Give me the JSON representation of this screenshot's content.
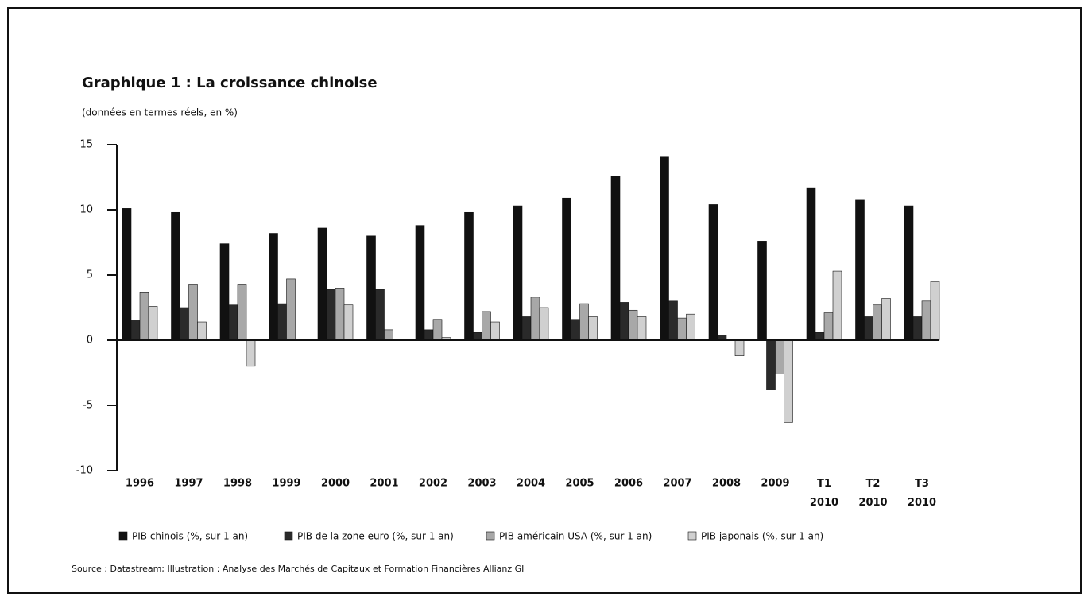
{
  "chart_data": {
    "type": "bar",
    "title": "Graphique 1 : La croissance chinoise",
    "subtitle": "(données en termes réels, en %)",
    "categories": [
      "1996",
      "1997",
      "1998",
      "1999",
      "2000",
      "2001",
      "2002",
      "2003",
      "2004",
      "2005",
      "2006",
      "2007",
      "2008",
      "2009",
      "T1 2010",
      "T2 2010",
      "T3 2010"
    ],
    "series": [
      {
        "name": "PIB chinois (%, sur 1 an)",
        "color": "#111111",
        "values": [
          10.1,
          9.8,
          7.4,
          8.2,
          8.6,
          8.0,
          8.8,
          9.8,
          10.3,
          10.9,
          12.6,
          14.1,
          10.4,
          7.6,
          11.7,
          10.8,
          10.3
        ]
      },
      {
        "name": "PIB de la zone euro (%, sur 1 an)",
        "color": "#2a2a2a",
        "values": [
          1.5,
          2.5,
          2.7,
          2.8,
          3.9,
          3.9,
          0.8,
          0.6,
          1.8,
          1.6,
          2.9,
          3.0,
          0.4,
          -3.8,
          0.6,
          1.8,
          1.8
        ]
      },
      {
        "name": "PIB américain USA (%, sur 1 an)",
        "color": "#a8a8a8",
        "values": [
          3.7,
          4.3,
          4.3,
          4.7,
          4.0,
          0.8,
          1.6,
          2.2,
          3.3,
          2.8,
          2.3,
          1.7,
          0.0,
          -2.6,
          2.1,
          2.7,
          3.0
        ]
      },
      {
        "name": "PIB japonais (%, sur 1 an)",
        "color": "#d0d0d0",
        "values": [
          2.6,
          1.4,
          -2.0,
          0.1,
          2.7,
          0.1,
          0.2,
          1.4,
          2.5,
          1.8,
          1.8,
          2.0,
          -1.2,
          -6.3,
          5.3,
          3.2,
          4.5
        ]
      }
    ],
    "ylim": [
      -10,
      15
    ],
    "yticks": [
      -10,
      -5,
      0,
      5,
      10,
      15
    ],
    "source": "Source : Datastream; Illustration : Analyse des Marchés de Capitaux et Formation Financières Allianz GI"
  }
}
